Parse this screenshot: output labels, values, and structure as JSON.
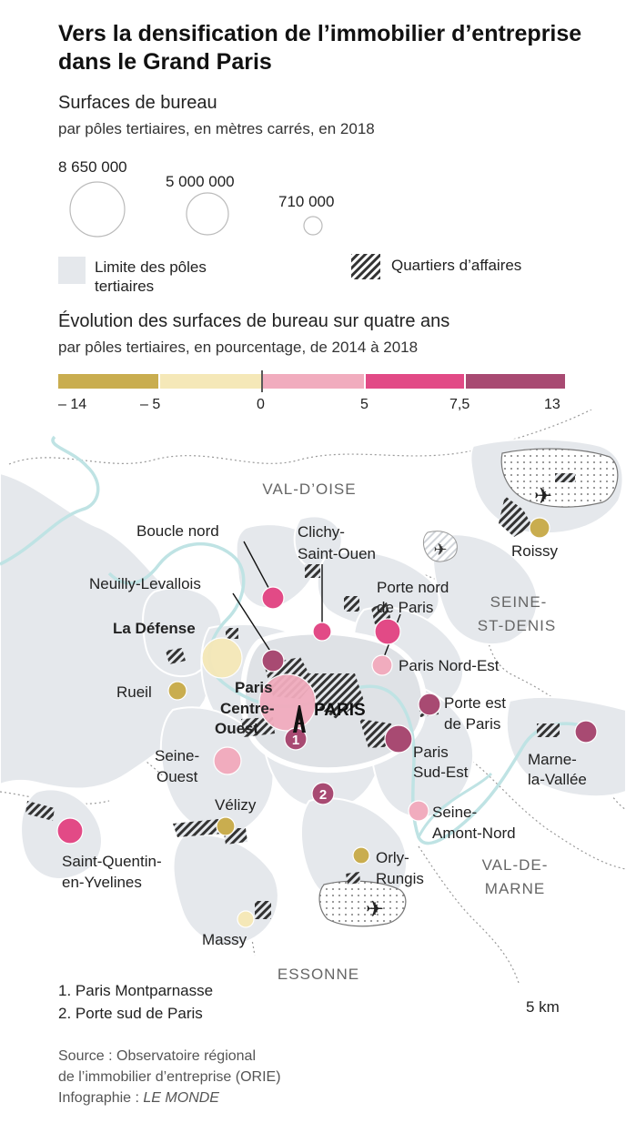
{
  "title": "Vers la densification de l’immobilier d’entreprise dans le Grand Paris",
  "size_legend": {
    "heading": "Surfaces de bureau",
    "subheading": "par pôles tertiaires, en mètres carrés, en 2018",
    "values": [
      "8 650 000",
      "5 000 000",
      "710 000"
    ]
  },
  "area_legend": {
    "limit_label_1": "Limite des pôles",
    "limit_label_2": "tertiaires",
    "business_label": "Quartiers d’affaires"
  },
  "color_legend": {
    "heading": "Évolution des surfaces de bureau sur quatre ans",
    "subheading": "par pôles tertiaires, en pourcentage, de 2014 à 2018",
    "ticks": [
      "– 14",
      "– 5",
      "0",
      "5",
      "7,5",
      "13"
    ],
    "colors": [
      "#c9ad4f",
      "#f5e8b8",
      "#f1acbe",
      "#e24a86",
      "#a84a72"
    ]
  },
  "departments": [
    "VAL-D’OISE",
    "SEINE-",
    "ST-DENIS",
    "VAL-DE-",
    "MARNE",
    "ESSONNE"
  ],
  "city": "PARIS",
  "places": {
    "boucle_nord": "Boucle nord",
    "clichy_1": "Clichy-",
    "clichy_2": "Saint-Ouen",
    "neuilly": "Neuilly-Levallois",
    "porte_nord_1": "Porte nord",
    "porte_nord_2": "de Paris",
    "la_defense": "La Défense",
    "paris_nord_est": "Paris Nord-Est",
    "rueil": "Rueil",
    "pco_1": "Paris",
    "pco_2": "Centre-",
    "pco_3": "Ouest",
    "porte_est_1": "Porte est",
    "porte_est_2": "de Paris",
    "seine_ouest_1": "Seine-",
    "seine_ouest_2": "Ouest",
    "paris_se_1": "Paris",
    "paris_se_2": "Sud-Est",
    "marne_1": "Marne-",
    "marne_2": "la-Vallée",
    "velizy": "Vélizy",
    "seine_amont_1": "Seine-",
    "seine_amont_2": "Amont-Nord",
    "sqy_1": "Saint-Quentin-",
    "sqy_2": "en-Yvelines",
    "orly_1": "Orly-",
    "orly_2": "Rungis",
    "massy": "Massy",
    "roissy": "Roissy",
    "num_1": "1",
    "num_2": "2"
  },
  "notes": [
    "1. Paris Montparnasse",
    "2. Porte sud de Paris"
  ],
  "scale_label": "5 km",
  "footer": {
    "source_1": "Source : Observatoire régional",
    "source_2": "de l’immobilier d’entreprise (ORIE)",
    "credit_prefix": "Infographie : ",
    "credit_name": "LE MONDE"
  }
}
